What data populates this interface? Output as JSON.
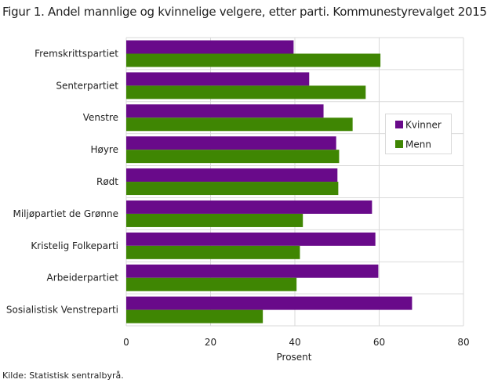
{
  "title": "Figur 1. Andel mannlige og kvinnelige velgere, etter parti. Kommunestyrevalget 2015",
  "source": "Kilde: Statistisk sentralbyrå.",
  "chart_data": {
    "type": "bar",
    "orientation": "horizontal",
    "title": "Figur 1. Andel mannlige og kvinnelige velgere, etter parti. Kommunestyrevalget 2015",
    "xlabel": "Prosent",
    "ylabel": "",
    "xlim": [
      0,
      80
    ],
    "xticks": [
      "0",
      "20",
      "40",
      "60",
      "80"
    ],
    "grid": true,
    "legend_position": "right",
    "categories": [
      "Fremskrittspartiet",
      "Senterpartiet",
      "Venstre",
      "Høyre",
      "Rødt",
      "Miljøpartiet de Grønne",
      "Kristelig Folkeparti",
      "Arbeiderpartiet",
      "Sosialistisk Venstreparti"
    ],
    "series": [
      {
        "name": "Kvinner",
        "color": "#690a8a",
        "values": [
          39.7,
          43.4,
          46.8,
          49.8,
          50.1,
          58.3,
          59.1,
          59.8,
          67.8
        ]
      },
      {
        "name": "Menn",
        "color": "#3f8603",
        "values": [
          60.3,
          56.8,
          53.7,
          50.5,
          50.3,
          41.9,
          41.2,
          40.4,
          32.4
        ]
      }
    ]
  }
}
